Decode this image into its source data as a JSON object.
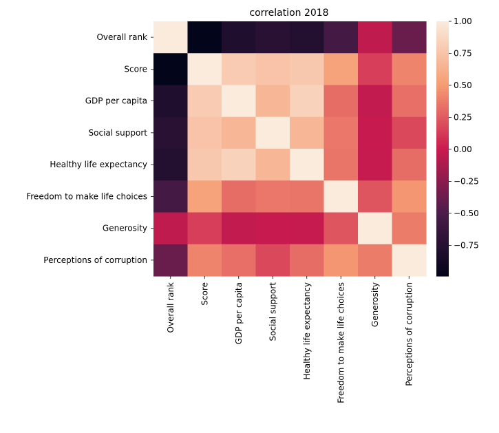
{
  "chart_data": {
    "type": "heatmap",
    "title": "correlation 2018",
    "xlabel": "",
    "ylabel": "",
    "labels": [
      "Overall rank",
      "Score",
      "GDP per capita",
      "Social support",
      "Healthy life expectancy",
      "Freedom to make life choices",
      "Generosity",
      "Perceptions of corruption"
    ],
    "matrix": [
      [
        1.0,
        -0.99,
        -0.8,
        -0.74,
        -0.77,
        -0.55,
        -0.04,
        -0.38
      ],
      [
        -0.99,
        1.0,
        0.8,
        0.75,
        0.78,
        0.54,
        0.14,
        0.41
      ],
      [
        -0.8,
        0.8,
        1.0,
        0.67,
        0.84,
        0.32,
        -0.03,
        0.33
      ],
      [
        -0.74,
        0.75,
        0.67,
        1.0,
        0.67,
        0.36,
        -0.01,
        0.18
      ],
      [
        -0.77,
        0.78,
        0.84,
        0.67,
        1.0,
        0.35,
        -0.02,
        0.32
      ],
      [
        -0.55,
        0.54,
        0.32,
        0.36,
        0.35,
        1.0,
        0.23,
        0.48
      ],
      [
        -0.04,
        0.14,
        -0.03,
        -0.01,
        -0.02,
        0.23,
        1.0,
        0.38
      ],
      [
        -0.38,
        0.41,
        0.33,
        0.18,
        0.32,
        0.48,
        0.38,
        1.0
      ]
    ],
    "colorbar": {
      "min": -0.99,
      "max": 1.0,
      "ticks": [
        1.0,
        0.75,
        0.5,
        0.25,
        0.0,
        -0.25,
        -0.5,
        -0.75
      ],
      "tick_labels": [
        "1.00",
        "0.75",
        "0.50",
        "0.25",
        "0.00",
        "−0.25",
        "−0.50",
        "−0.75"
      ]
    },
    "colormap": [
      "#03051a",
      "#4c1d4b",
      "#cb1b4f",
      "#f69c73",
      "#faebdd"
    ]
  }
}
